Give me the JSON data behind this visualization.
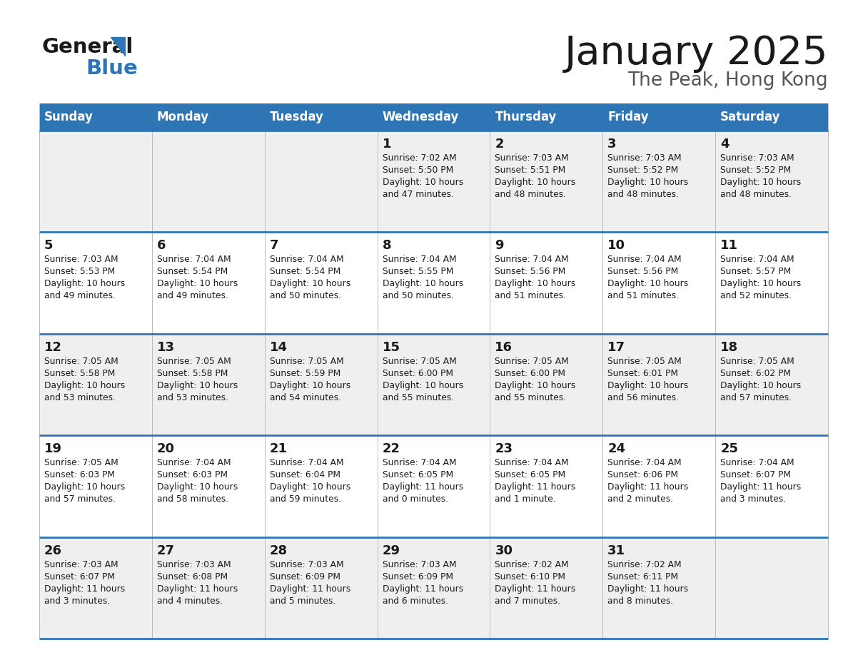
{
  "title": "January 2025",
  "subtitle": "The Peak, Hong Kong",
  "header_bg": "#2E75B6",
  "header_text_color": "#FFFFFF",
  "day_names": [
    "Sunday",
    "Monday",
    "Tuesday",
    "Wednesday",
    "Thursday",
    "Friday",
    "Saturday"
  ],
  "row_bg_even": "#EFEFEF",
  "row_bg_odd": "#FFFFFF",
  "row_divider_color": "#2E75B6",
  "day_num_color": "#1a1a1a",
  "info_text_color": "#1a1a1a",
  "calendar": [
    [
      {
        "day": null,
        "sunrise": null,
        "sunset": null,
        "daylight1": null,
        "daylight2": null
      },
      {
        "day": null,
        "sunrise": null,
        "sunset": null,
        "daylight1": null,
        "daylight2": null
      },
      {
        "day": null,
        "sunrise": null,
        "sunset": null,
        "daylight1": null,
        "daylight2": null
      },
      {
        "day": "1",
        "sunrise": "Sunrise: 7:02 AM",
        "sunset": "Sunset: 5:50 PM",
        "daylight1": "Daylight: 10 hours",
        "daylight2": "and 47 minutes."
      },
      {
        "day": "2",
        "sunrise": "Sunrise: 7:03 AM",
        "sunset": "Sunset: 5:51 PM",
        "daylight1": "Daylight: 10 hours",
        "daylight2": "and 48 minutes."
      },
      {
        "day": "3",
        "sunrise": "Sunrise: 7:03 AM",
        "sunset": "Sunset: 5:52 PM",
        "daylight1": "Daylight: 10 hours",
        "daylight2": "and 48 minutes."
      },
      {
        "day": "4",
        "sunrise": "Sunrise: 7:03 AM",
        "sunset": "Sunset: 5:52 PM",
        "daylight1": "Daylight: 10 hours",
        "daylight2": "and 48 minutes."
      }
    ],
    [
      {
        "day": "5",
        "sunrise": "Sunrise: 7:03 AM",
        "sunset": "Sunset: 5:53 PM",
        "daylight1": "Daylight: 10 hours",
        "daylight2": "and 49 minutes."
      },
      {
        "day": "6",
        "sunrise": "Sunrise: 7:04 AM",
        "sunset": "Sunset: 5:54 PM",
        "daylight1": "Daylight: 10 hours",
        "daylight2": "and 49 minutes."
      },
      {
        "day": "7",
        "sunrise": "Sunrise: 7:04 AM",
        "sunset": "Sunset: 5:54 PM",
        "daylight1": "Daylight: 10 hours",
        "daylight2": "and 50 minutes."
      },
      {
        "day": "8",
        "sunrise": "Sunrise: 7:04 AM",
        "sunset": "Sunset: 5:55 PM",
        "daylight1": "Daylight: 10 hours",
        "daylight2": "and 50 minutes."
      },
      {
        "day": "9",
        "sunrise": "Sunrise: 7:04 AM",
        "sunset": "Sunset: 5:56 PM",
        "daylight1": "Daylight: 10 hours",
        "daylight2": "and 51 minutes."
      },
      {
        "day": "10",
        "sunrise": "Sunrise: 7:04 AM",
        "sunset": "Sunset: 5:56 PM",
        "daylight1": "Daylight: 10 hours",
        "daylight2": "and 51 minutes."
      },
      {
        "day": "11",
        "sunrise": "Sunrise: 7:04 AM",
        "sunset": "Sunset: 5:57 PM",
        "daylight1": "Daylight: 10 hours",
        "daylight2": "and 52 minutes."
      }
    ],
    [
      {
        "day": "12",
        "sunrise": "Sunrise: 7:05 AM",
        "sunset": "Sunset: 5:58 PM",
        "daylight1": "Daylight: 10 hours",
        "daylight2": "and 53 minutes."
      },
      {
        "day": "13",
        "sunrise": "Sunrise: 7:05 AM",
        "sunset": "Sunset: 5:58 PM",
        "daylight1": "Daylight: 10 hours",
        "daylight2": "and 53 minutes."
      },
      {
        "day": "14",
        "sunrise": "Sunrise: 7:05 AM",
        "sunset": "Sunset: 5:59 PM",
        "daylight1": "Daylight: 10 hours",
        "daylight2": "and 54 minutes."
      },
      {
        "day": "15",
        "sunrise": "Sunrise: 7:05 AM",
        "sunset": "Sunset: 6:00 PM",
        "daylight1": "Daylight: 10 hours",
        "daylight2": "and 55 minutes."
      },
      {
        "day": "16",
        "sunrise": "Sunrise: 7:05 AM",
        "sunset": "Sunset: 6:00 PM",
        "daylight1": "Daylight: 10 hours",
        "daylight2": "and 55 minutes."
      },
      {
        "day": "17",
        "sunrise": "Sunrise: 7:05 AM",
        "sunset": "Sunset: 6:01 PM",
        "daylight1": "Daylight: 10 hours",
        "daylight2": "and 56 minutes."
      },
      {
        "day": "18",
        "sunrise": "Sunrise: 7:05 AM",
        "sunset": "Sunset: 6:02 PM",
        "daylight1": "Daylight: 10 hours",
        "daylight2": "and 57 minutes."
      }
    ],
    [
      {
        "day": "19",
        "sunrise": "Sunrise: 7:05 AM",
        "sunset": "Sunset: 6:03 PM",
        "daylight1": "Daylight: 10 hours",
        "daylight2": "and 57 minutes."
      },
      {
        "day": "20",
        "sunrise": "Sunrise: 7:04 AM",
        "sunset": "Sunset: 6:03 PM",
        "daylight1": "Daylight: 10 hours",
        "daylight2": "and 58 minutes."
      },
      {
        "day": "21",
        "sunrise": "Sunrise: 7:04 AM",
        "sunset": "Sunset: 6:04 PM",
        "daylight1": "Daylight: 10 hours",
        "daylight2": "and 59 minutes."
      },
      {
        "day": "22",
        "sunrise": "Sunrise: 7:04 AM",
        "sunset": "Sunset: 6:05 PM",
        "daylight1": "Daylight: 11 hours",
        "daylight2": "and 0 minutes."
      },
      {
        "day": "23",
        "sunrise": "Sunrise: 7:04 AM",
        "sunset": "Sunset: 6:05 PM",
        "daylight1": "Daylight: 11 hours",
        "daylight2": "and 1 minute."
      },
      {
        "day": "24",
        "sunrise": "Sunrise: 7:04 AM",
        "sunset": "Sunset: 6:06 PM",
        "daylight1": "Daylight: 11 hours",
        "daylight2": "and 2 minutes."
      },
      {
        "day": "25",
        "sunrise": "Sunrise: 7:04 AM",
        "sunset": "Sunset: 6:07 PM",
        "daylight1": "Daylight: 11 hours",
        "daylight2": "and 3 minutes."
      }
    ],
    [
      {
        "day": "26",
        "sunrise": "Sunrise: 7:03 AM",
        "sunset": "Sunset: 6:07 PM",
        "daylight1": "Daylight: 11 hours",
        "daylight2": "and 3 minutes."
      },
      {
        "day": "27",
        "sunrise": "Sunrise: 7:03 AM",
        "sunset": "Sunset: 6:08 PM",
        "daylight1": "Daylight: 11 hours",
        "daylight2": "and 4 minutes."
      },
      {
        "day": "28",
        "sunrise": "Sunrise: 7:03 AM",
        "sunset": "Sunset: 6:09 PM",
        "daylight1": "Daylight: 11 hours",
        "daylight2": "and 5 minutes."
      },
      {
        "day": "29",
        "sunrise": "Sunrise: 7:03 AM",
        "sunset": "Sunset: 6:09 PM",
        "daylight1": "Daylight: 11 hours",
        "daylight2": "and 6 minutes."
      },
      {
        "day": "30",
        "sunrise": "Sunrise: 7:02 AM",
        "sunset": "Sunset: 6:10 PM",
        "daylight1": "Daylight: 11 hours",
        "daylight2": "and 7 minutes."
      },
      {
        "day": "31",
        "sunrise": "Sunrise: 7:02 AM",
        "sunset": "Sunset: 6:11 PM",
        "daylight1": "Daylight: 11 hours",
        "daylight2": "and 8 minutes."
      },
      {
        "day": null,
        "sunrise": null,
        "sunset": null,
        "daylight1": null,
        "daylight2": null
      }
    ]
  ]
}
